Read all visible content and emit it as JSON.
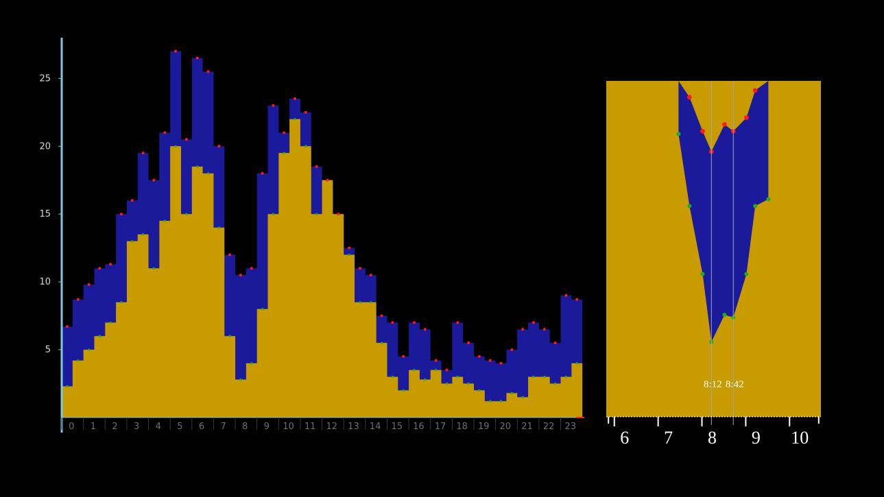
{
  "colors": {
    "background": "#000000",
    "base_area": "#c89c00",
    "upper_area": "#1a1a9a",
    "peak_dots": "#ff1a1a",
    "valley_dots": "#22aa22",
    "main_axis": "#7ec8e0",
    "zoom_axis": "#ffffff",
    "marker_line": "#9aaabb"
  },
  "chart_data": [
    {
      "type": "area",
      "title": "",
      "xlabel": "",
      "ylabel": "",
      "xlim": [
        0,
        23.9
      ],
      "ylim": [
        0,
        28
      ],
      "y_ticks": [
        5,
        10,
        15,
        20,
        25
      ],
      "x_ticks": [
        0,
        1,
        2,
        3,
        4,
        5,
        6,
        7,
        8,
        9,
        10,
        11,
        12,
        13,
        14,
        15,
        16,
        17,
        18,
        19,
        20,
        21,
        22,
        23
      ],
      "grid": false,
      "legend": "none",
      "x": [
        0.0,
        0.5,
        1.0,
        1.5,
        2.0,
        2.5,
        3.0,
        3.5,
        4.0,
        4.5,
        5.0,
        5.5,
        6.0,
        6.5,
        7.0,
        7.5,
        8.0,
        8.5,
        9.0,
        9.5,
        10.0,
        10.5,
        11.0,
        11.5,
        12.0,
        12.5,
        13.0,
        13.5,
        14.0,
        14.5,
        15.0,
        15.5,
        16.0,
        16.5,
        17.0,
        17.5,
        18.0,
        18.5,
        19.0,
        19.5,
        20.0,
        20.5,
        21.0,
        21.5,
        22.0,
        22.5,
        23.0,
        23.5
      ],
      "series": [
        {
          "role": "lower (yellow)",
          "values": [
            2.3,
            4.2,
            5.0,
            6.0,
            7.0,
            8.5,
            13.0,
            13.5,
            11.0,
            14.5,
            20.0,
            15.0,
            18.5,
            18.0,
            14.0,
            6.0,
            2.8,
            4.0,
            8.0,
            15.0,
            19.5,
            22.0,
            20.0,
            15.0,
            17.5,
            15.0,
            12.0,
            8.5,
            8.5,
            5.5,
            3.0,
            2.0,
            3.5,
            2.8,
            3.5,
            2.5,
            3.0,
            2.5,
            2.0,
            1.2,
            1.2,
            1.8,
            1.5,
            3.0,
            3.0,
            2.5,
            3.0,
            4.0
          ]
        },
        {
          "role": "upper (blue) with red peak markers",
          "values": [
            6.7,
            8.7,
            9.8,
            11.0,
            11.3,
            15.0,
            16.0,
            19.5,
            17.5,
            21.0,
            27.0,
            20.5,
            26.5,
            25.5,
            20.0,
            12.0,
            10.5,
            11.0,
            18.0,
            23.0,
            21.0,
            23.5,
            22.5,
            18.5,
            17.5,
            15.0,
            12.5,
            11.0,
            10.5,
            7.5,
            7.0,
            4.5,
            7.0,
            6.5,
            4.2,
            3.5,
            7.0,
            5.5,
            4.5,
            4.2,
            4.0,
            5.0,
            6.5,
            7.0,
            6.5,
            5.5,
            9.0,
            8.7
          ]
        }
      ]
    },
    {
      "type": "area",
      "title": "",
      "xlabel": "",
      "ylabel": "",
      "xlim": [
        5.8,
        10.7
      ],
      "x_ticks": [
        6,
        7,
        8,
        9,
        10
      ],
      "grid": false,
      "legend": "none",
      "annotations": [
        {
          "label": "8:12",
          "x": 8.2
        },
        {
          "label": "8:42",
          "x": 8.7
        }
      ],
      "x": [
        7.45,
        7.7,
        8.0,
        8.2,
        8.5,
        8.7,
        9.0,
        9.2,
        9.5
      ],
      "series": [
        {
          "role": "lower (yellow) with green valley markers",
          "values": [
            20.8,
            15.5,
            10.5,
            5.5,
            7.5,
            7.3,
            10.5,
            15.5,
            16.0
          ]
        },
        {
          "role": "upper (blue) with red peak markers",
          "values": [
            24.7,
            23.5,
            21.0,
            19.5,
            21.5,
            21.0,
            22.0,
            24.0,
            24.7
          ]
        }
      ]
    }
  ]
}
